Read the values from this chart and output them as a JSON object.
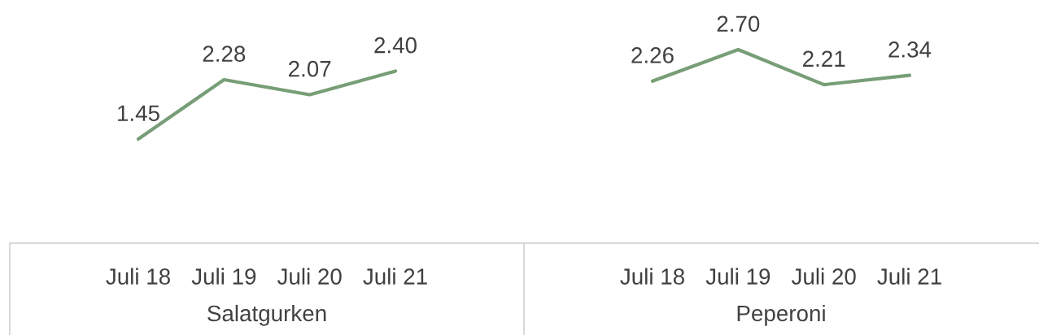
{
  "chart_data": [
    {
      "type": "line",
      "categories": [
        "Juli 18",
        "Juli 19",
        "Juli 20",
        "Juli 21"
      ],
      "xlabel": "Salatgurken",
      "values": [
        1.45,
        2.28,
        2.07,
        2.4
      ],
      "value_labels": [
        "1.45",
        "2.28",
        "2.07",
        "2.40"
      ],
      "color": "#779e76",
      "tick_labels": "x",
      "line_style": "solid"
    },
    {
      "type": "line",
      "categories": [
        "Juli 18",
        "Juli 19",
        "Juli 20",
        "Juli 21"
      ],
      "xlabel": "Peperoni",
      "values": [
        2.26,
        2.7,
        2.21,
        2.34
      ],
      "value_labels": [
        "2.26",
        "2.70",
        "2.21",
        "2.34"
      ],
      "color": "#779e76",
      "tick_labels": "x",
      "line_style": "solid"
    }
  ]
}
